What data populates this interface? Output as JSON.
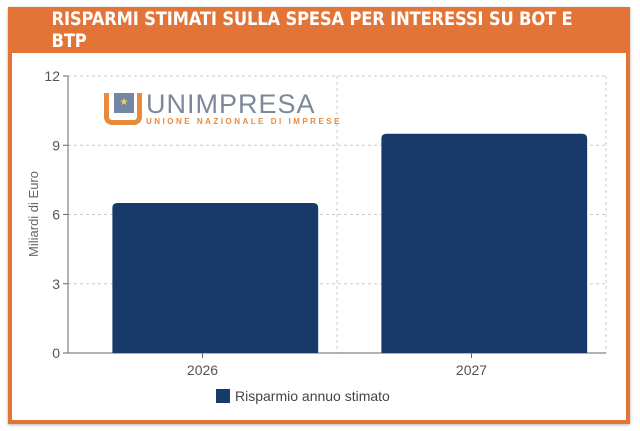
{
  "title": "RISPARMI STIMATI SULLA SPESA PER INTERESSI SU BOT E BTP",
  "logo": {
    "name": "UNIMPRESA",
    "subtitle": "UNIONE NAZIONALE DI IMPRESE"
  },
  "chart_data": {
    "type": "bar",
    "categories": [
      "2026",
      "2027"
    ],
    "series": [
      {
        "name": "Risparmio annuo stimato",
        "values": [
          6.5,
          9.5
        ],
        "color": "#173a6b"
      }
    ],
    "ylabel": "Miliardi di Euro",
    "xlabel": "",
    "ylim": [
      0,
      12
    ],
    "yticks": [
      "0",
      "3",
      "6",
      "9",
      "12"
    ],
    "grid": true,
    "legend": "bottom"
  }
}
